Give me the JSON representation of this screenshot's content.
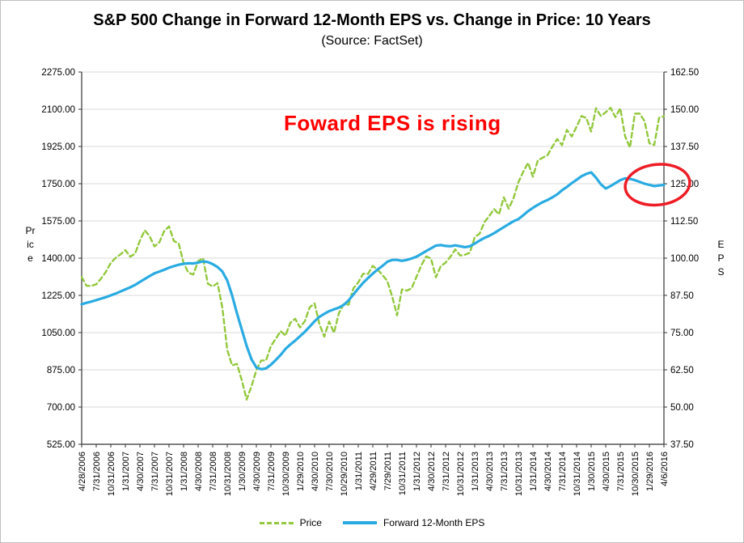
{
  "annotation": {
    "text": "Foward EPS is rising",
    "show_circle": true
  },
  "colors": {
    "price": "#92c83c",
    "eps": "#29abe2",
    "annotation_red": "#ff0000",
    "highlight_red": "#ee1c25",
    "gridline": "#d9d9d9",
    "axis": "#333333"
  },
  "chart_data": {
    "type": "line",
    "title": "S&P 500 Change in Forward 12-Month EPS vs. Change in Price: 10 Years",
    "subtitle": "(Source: FactSet)",
    "grid": true,
    "legend_position": "bottom",
    "x_frequency": "monthly",
    "x_tick_labels": [
      "4/28/2006",
      "7/31/2006",
      "10/31/2006",
      "1/31/2007",
      "4/30/2007",
      "7/31/2007",
      "10/31/2007",
      "1/31/2008",
      "4/30/2008",
      "7/31/2008",
      "10/31/2008",
      "1/30/2009",
      "4/30/2009",
      "7/31/2009",
      "10/30/2009",
      "1/29/2010",
      "4/30/2010",
      "7/30/2010",
      "10/29/2010",
      "1/31/2011",
      "4/29/2011",
      "7/29/2011",
      "10/31/2011",
      "1/31/2012",
      "4/30/2012",
      "7/31/2012",
      "10/31/2012",
      "1/31/2013",
      "4/30/2013",
      "7/31/2013",
      "10/31/2013",
      "1/31/2014",
      "4/30/2014",
      "7/31/2014",
      "10/31/2014",
      "1/30/2015",
      "4/30/2015",
      "7/31/2015",
      "10/30/2015",
      "1/29/2016",
      "4/6/2016"
    ],
    "left_axis": {
      "title": "Price",
      "min": 525,
      "max": 2275,
      "ticks": [
        "2275.00",
        "2100.00",
        "1925.00",
        "1750.00",
        "1575.00",
        "1400.00",
        "1225.00",
        "1050.00",
        "875.00",
        "700.00",
        "525.00"
      ]
    },
    "right_axis": {
      "title": "EPS",
      "min": 37.5,
      "max": 162.5,
      "ticks": [
        "162.50",
        "150.00",
        "137.50",
        "125.00",
        "112.50",
        "100.00",
        "87.50",
        "75.00",
        "62.50",
        "50.00",
        "37.50"
      ]
    },
    "series": [
      {
        "name": "Price",
        "axis": "left",
        "style": "dashed",
        "color": "#92c83c",
        "values": [
          1311,
          1270,
          1270,
          1277,
          1304,
          1336,
          1378,
          1401,
          1418,
          1438,
          1407,
          1421,
          1482,
          1531,
          1503,
          1455,
          1474,
          1527,
          1549,
          1481,
          1468,
          1378,
          1331,
          1323,
          1386,
          1400,
          1280,
          1267,
          1283,
          1166,
          969,
          896,
          903,
          826,
          735,
          798,
          873,
          919,
          919,
          987,
          1021,
          1057,
          1036,
          1096,
          1115,
          1074,
          1104,
          1169,
          1187,
          1089,
          1031,
          1102,
          1049,
          1141,
          1183,
          1181,
          1258,
          1286,
          1327,
          1326,
          1364,
          1345,
          1321,
          1292,
          1219,
          1131,
          1253,
          1247,
          1258,
          1312,
          1366,
          1408,
          1398,
          1310,
          1362,
          1379,
          1407,
          1441,
          1412,
          1416,
          1426,
          1498,
          1515,
          1569,
          1598,
          1631,
          1606,
          1686,
          1633,
          1682,
          1757,
          1806,
          1848,
          1783,
          1859,
          1872,
          1884,
          1924,
          1960,
          1931,
          2003,
          1972,
          2018,
          2068,
          2059,
          1995,
          2105,
          2068,
          2086,
          2107,
          2063,
          2104,
          1972,
          1920,
          2079,
          2080,
          2044,
          1940,
          1932,
          2060,
          2067
        ]
      },
      {
        "name": "Forward 12-Month EPS",
        "axis": "right",
        "style": "solid",
        "color": "#29abe2",
        "values": [
          84.5,
          85.0,
          85.4,
          85.9,
          86.4,
          86.9,
          87.5,
          88.1,
          88.8,
          89.5,
          90.2,
          91.0,
          92.0,
          93.0,
          94.0,
          94.9,
          95.5,
          96.1,
          96.8,
          97.3,
          97.8,
          98.1,
          98.3,
          98.2,
          98.5,
          98.9,
          98.7,
          98.0,
          97.0,
          95.5,
          92.5,
          87.5,
          81.5,
          76.0,
          70.5,
          66.0,
          63.3,
          62.7,
          63.0,
          64.2,
          65.8,
          67.5,
          69.5,
          71.0,
          72.3,
          73.8,
          75.3,
          77.0,
          78.8,
          80.3,
          81.3,
          82.2,
          82.8,
          83.4,
          84.3,
          85.8,
          87.8,
          89.8,
          91.7,
          93.3,
          94.8,
          96.2,
          97.4,
          98.8,
          99.4,
          99.4,
          99.1,
          99.4,
          99.9,
          100.5,
          101.4,
          102.4,
          103.3,
          104.2,
          104.4,
          104.1,
          104.0,
          104.3,
          104.0,
          103.7,
          104.0,
          104.9,
          105.9,
          106.8,
          107.5,
          108.4,
          109.4,
          110.4,
          111.4,
          112.4,
          113.1,
          114.4,
          115.8,
          116.9,
          117.9,
          118.8,
          119.5,
          120.4,
          121.4,
          122.8,
          123.9,
          125.2,
          126.3,
          127.5,
          128.3,
          128.8,
          127.0,
          124.8,
          123.4,
          124.2,
          125.2,
          126.2,
          126.8,
          126.6,
          126.2,
          125.6,
          125.0,
          124.6,
          124.2,
          124.4,
          124.6
        ]
      }
    ]
  }
}
